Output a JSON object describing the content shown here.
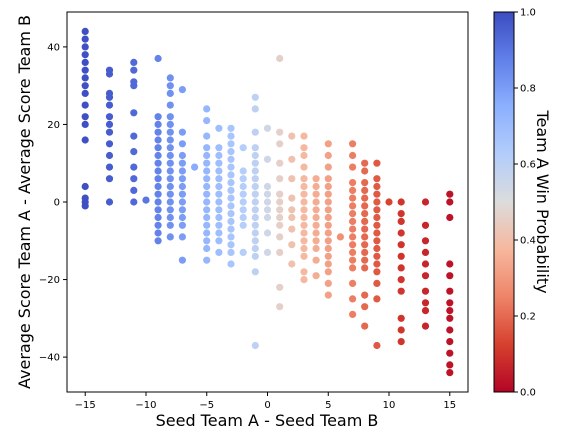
{
  "chart_data": {
    "type": "scatter",
    "title": "",
    "xlabel": "Seed Team A - Seed Team B",
    "ylabel": "Average Score Team A - Average Score Team B",
    "xlim": [
      -16.5,
      16.5
    ],
    "ylim": [
      -49,
      49
    ],
    "x_ticks": [
      -15,
      -10,
      -5,
      0,
      5,
      10,
      15
    ],
    "y_ticks": [
      -40,
      -20,
      0,
      20,
      40
    ],
    "grid": false,
    "colormap": "coolwarm",
    "colorbar": {
      "label": "Team A Win Probability",
      "range": [
        0.0,
        1.0
      ],
      "ticks": [
        0.0,
        0.2,
        0.4,
        0.6,
        0.8,
        1.0
      ],
      "tick_labels": [
        "0.0",
        "0.2",
        "0.4",
        "0.6",
        "0.8",
        "1.0"
      ]
    },
    "point_color_note": "color encodes Team A Win Probability",
    "columns": [
      {
        "x": -15,
        "p": 0.99,
        "y": [
          44,
          42,
          40,
          38,
          36,
          34,
          32,
          30,
          28,
          25,
          22,
          20,
          16,
          4,
          1,
          0,
          -1
        ]
      },
      {
        "x": -13,
        "p": 0.96,
        "y": [
          34,
          33,
          28,
          27,
          25,
          22,
          20,
          18,
          15,
          12,
          9,
          6,
          0
        ]
      },
      {
        "x": -11,
        "p": 0.93,
        "y": [
          36,
          34,
          31,
          30,
          23,
          17,
          13,
          9,
          6,
          3,
          0
        ]
      },
      {
        "x": -10,
        "p": 0.9,
        "y": [
          0.5
        ]
      },
      {
        "x": -9,
        "p": 0.87,
        "y": [
          37,
          22,
          20,
          18,
          16,
          14,
          12,
          10,
          8,
          6,
          4,
          2,
          0,
          -2,
          -4,
          -6,
          -8,
          -10
        ]
      },
      {
        "x": -8,
        "p": 0.83,
        "y": [
          32,
          30,
          28,
          25,
          22,
          20,
          18,
          16,
          14,
          12,
          10,
          8,
          6,
          4,
          2,
          0,
          -2,
          -4,
          -6,
          -9
        ]
      },
      {
        "x": -7,
        "p": 0.8,
        "y": [
          29,
          18,
          15,
          12,
          10,
          8,
          6,
          4,
          2,
          0,
          -2,
          -4,
          -6,
          -9,
          -15
        ]
      },
      {
        "x": -6,
        "p": 0.76,
        "y": [
          9
        ]
      },
      {
        "x": -5,
        "p": 0.72,
        "y": [
          24,
          21,
          17,
          14,
          12,
          10,
          8,
          6,
          4,
          2,
          0,
          -2,
          -4,
          -6,
          -8,
          -10,
          -12,
          -15
        ]
      },
      {
        "x": -4,
        "p": 0.69,
        "y": [
          19,
          14,
          12,
          10,
          8,
          6,
          4,
          2,
          0,
          -2,
          -4,
          -6,
          -8,
          -10,
          -13
        ]
      },
      {
        "x": -3,
        "p": 0.66,
        "y": [
          19,
          17,
          15,
          13,
          11,
          9,
          7,
          5,
          3,
          1,
          -1,
          -3,
          -5,
          -7,
          -9,
          -11,
          -13,
          -16
        ]
      },
      {
        "x": -2,
        "p": 0.62,
        "y": [
          14,
          8,
          6,
          4,
          2,
          0,
          -2,
          -4,
          -6,
          -13
        ]
      },
      {
        "x": -1,
        "p": 0.59,
        "y": [
          27,
          24,
          18,
          14,
          12,
          10,
          8,
          6,
          4,
          2,
          0,
          -2,
          -4,
          -6,
          -8,
          -10,
          -12,
          -14,
          -18,
          -37
        ]
      },
      {
        "x": 0,
        "p": 0.54,
        "y": [
          19,
          11,
          4,
          2,
          0,
          -2,
          -4,
          -8,
          -13
        ]
      },
      {
        "x": 1,
        "p": 0.46,
        "y": [
          37,
          18,
          15,
          10,
          6,
          2,
          0,
          -2,
          -4,
          -6,
          -9,
          -13,
          -22,
          -27
        ]
      },
      {
        "x": 2,
        "p": 0.41,
        "y": [
          17,
          11,
          6,
          1,
          -2,
          -4,
          -7,
          -11,
          -16
        ]
      },
      {
        "x": 3,
        "p": 0.38,
        "y": [
          17,
          14,
          12,
          9,
          6,
          4,
          2,
          0,
          -2,
          -4,
          -6,
          -8,
          -10,
          -12,
          -14,
          -18,
          -20
        ]
      },
      {
        "x": 4,
        "p": 0.35,
        "y": [
          6,
          4,
          2,
          0,
          -2,
          -4,
          -6,
          -8,
          -10,
          -12,
          -15,
          -19
        ]
      },
      {
        "x": 5,
        "p": 0.32,
        "y": [
          15,
          12,
          9,
          6,
          4,
          2,
          0,
          -2,
          -4,
          -6,
          -8,
          -10,
          -12,
          -14,
          -16,
          -18,
          -21,
          -24
        ]
      },
      {
        "x": 6,
        "p": 0.28,
        "y": [
          -9
        ]
      },
      {
        "x": 7,
        "p": 0.24,
        "y": [
          15,
          12,
          9,
          5,
          3,
          1,
          -1,
          -3,
          -5,
          -7,
          -9,
          -11,
          -13,
          -15,
          -17,
          -21,
          -25,
          -29
        ]
      },
      {
        "x": 8,
        "p": 0.2,
        "y": [
          10,
          8,
          5,
          3,
          1,
          -1,
          -3,
          -5,
          -7,
          -9,
          -11,
          -13,
          -15,
          -17,
          -24,
          -27,
          -32
        ]
      },
      {
        "x": 9,
        "p": 0.17,
        "y": [
          10,
          6,
          4,
          2,
          0,
          -2,
          -4,
          -6,
          -8,
          -10,
          -12,
          -14,
          -16,
          -18,
          -21,
          -25,
          -37
        ]
      },
      {
        "x": 10,
        "p": 0.13,
        "y": [
          0
        ]
      },
      {
        "x": 11,
        "p": 0.1,
        "y": [
          0,
          -3,
          -5,
          -8,
          -11,
          -14,
          -17,
          -20,
          -23,
          -30,
          -33,
          -36
        ]
      },
      {
        "x": 13,
        "p": 0.07,
        "y": [
          0,
          -6,
          -10,
          -13,
          -16,
          -19,
          -23,
          -26,
          -28,
          -32
        ]
      },
      {
        "x": 15,
        "p": 0.03,
        "y": [
          2,
          0,
          -4,
          -16,
          -19,
          -23,
          -26,
          -28,
          -30,
          -33,
          -36,
          -39,
          -42,
          -44
        ]
      }
    ]
  }
}
